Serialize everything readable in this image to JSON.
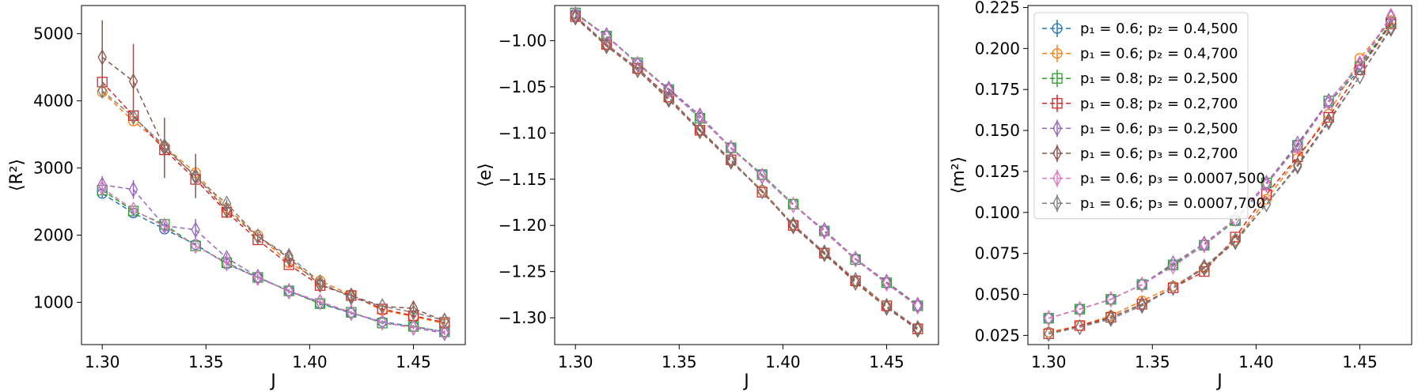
{
  "chart_data": [
    {
      "type": "line",
      "xlabel": "J",
      "ylabel": "⟨R²⟩",
      "xlim": [
        1.29,
        1.475
      ],
      "ylim": [
        370,
        5420
      ],
      "xticks": [
        "1.30",
        "1.35",
        "1.40",
        "1.45"
      ],
      "yticks": [
        "1000",
        "2000",
        "3000",
        "4000",
        "5000"
      ],
      "grid": false,
      "x": [
        1.3,
        1.315,
        1.33,
        1.345,
        1.36,
        1.375,
        1.39,
        1.405,
        1.42,
        1.435,
        1.45,
        1.465
      ],
      "series": [
        {
          "name": "p₁ = 0.6; p₂ = 0.4,500",
          "color": "#1f77b4",
          "marker": "circle",
          "values": [
            2620,
            2330,
            2090,
            1860,
            1570,
            1370,
            1170,
            980,
            840,
            710,
            640,
            560
          ],
          "errors": [
            60,
            40,
            30,
            30,
            30,
            25,
            25,
            25,
            20,
            20,
            20,
            20
          ]
        },
        {
          "name": "p₁ = 0.6; p₂ = 0.4,700",
          "color": "#ff7f0e",
          "marker": "circle",
          "values": [
            4130,
            3700,
            3320,
            2930,
            2400,
            2000,
            1590,
            1320,
            1110,
            880,
            790,
            680
          ],
          "errors": [
            80,
            60,
            60,
            60,
            50,
            40,
            40,
            30,
            30,
            30,
            30,
            30
          ]
        },
        {
          "name": "p₁ = 0.8; p₂ = 0.2,500",
          "color": "#2ca02c",
          "marker": "square",
          "values": [
            2670,
            2360,
            2160,
            1840,
            1590,
            1370,
            1170,
            980,
            850,
            690,
            640,
            560
          ],
          "errors": [
            60,
            40,
            30,
            30,
            30,
            25,
            25,
            25,
            20,
            20,
            20,
            20
          ]
        },
        {
          "name": "p₁ = 0.8; p₂ = 0.2,700",
          "color": "#d62728",
          "marker": "square",
          "values": [
            4280,
            3780,
            3270,
            2830,
            2340,
            1930,
            1560,
            1250,
            1100,
            900,
            800,
            700
          ],
          "errors": [
            80,
            60,
            60,
            60,
            50,
            40,
            40,
            30,
            30,
            30,
            30,
            30
          ]
        },
        {
          "name": "p₁ = 0.6; p₃ = 0.2,500",
          "color": "#9467bd",
          "marker": "diamond",
          "values": [
            2750,
            2680,
            2140,
            2080,
            1660,
            1380,
            1160,
            1000,
            840,
            700,
            620,
            540
          ],
          "errors": [
            130,
            140,
            60,
            160,
            70,
            40,
            30,
            30,
            25,
            25,
            25,
            25
          ]
        },
        {
          "name": "p₁ = 0.6; p₃ = 0.2,700",
          "color": "#8c564b",
          "marker": "diamond",
          "values": [
            4650,
            4290,
            3300,
            2880,
            2370,
            1980,
            1660,
            1260,
            1100,
            940,
            910,
            720
          ],
          "errors": [
            550,
            560,
            450,
            330,
            100,
            60,
            50,
            40,
            40,
            40,
            100,
            40
          ]
        },
        {
          "name": "p₁ = 0.6; p₃ = 0.0007,500",
          "color": "#e377c2",
          "marker": "diamond",
          "values": [
            2700,
            2380,
            2130,
            1840,
            1580,
            1360,
            1170,
            1010,
            850,
            700,
            630,
            560
          ],
          "errors": [
            60,
            40,
            30,
            30,
            30,
            25,
            25,
            25,
            20,
            20,
            20,
            20
          ]
        },
        {
          "name": "p₁ = 0.6; p₃ = 0.0007,700",
          "color": "#7f7f7f",
          "marker": "diamond",
          "values": [
            4150,
            3760,
            3330,
            2860,
            2470,
            1980,
            1690,
            1300,
            1070,
            940,
            850,
            730
          ],
          "errors": [
            90,
            70,
            70,
            60,
            60,
            50,
            40,
            40,
            30,
            30,
            30,
            30
          ]
        }
      ]
    },
    {
      "type": "line",
      "xlabel": "J",
      "ylabel": "⟨e⟩",
      "xlim": [
        1.29,
        1.475
      ],
      "ylim": [
        -1.329,
        -0.962
      ],
      "xticks": [
        "1.30",
        "1.35",
        "1.40",
        "1.45"
      ],
      "yticks": [
        "−1.00",
        "−1.05",
        "−1.10",
        "−1.15",
        "−1.20",
        "−1.25",
        "−1.30"
      ],
      "grid": false,
      "x": [
        1.3,
        1.315,
        1.33,
        1.345,
        1.36,
        1.375,
        1.39,
        1.405,
        1.42,
        1.435,
        1.45,
        1.465
      ],
      "series": [
        {
          "name": "p₁ = 0.6; p₂ = 0.4,500",
          "color": "#1f77b4",
          "marker": "circle",
          "values": [
            -0.971,
            -0.995,
            -1.025,
            -1.053,
            -1.083,
            -1.116,
            -1.145,
            -1.177,
            -1.206,
            -1.236,
            -1.262,
            -1.287
          ]
        },
        {
          "name": "p₁ = 0.6; p₂ = 0.4,700",
          "color": "#ff7f0e",
          "marker": "circle",
          "values": [
            -0.974,
            -1.005,
            -1.031,
            -1.063,
            -1.097,
            -1.13,
            -1.162,
            -1.199,
            -1.23,
            -1.261,
            -1.288,
            -1.311
          ]
        },
        {
          "name": "p₁ = 0.8; p₂ = 0.2,500",
          "color": "#2ca02c",
          "marker": "square",
          "values": [
            -0.97,
            -0.995,
            -1.024,
            -1.053,
            -1.084,
            -1.116,
            -1.145,
            -1.177,
            -1.206,
            -1.237,
            -1.262,
            -1.287
          ]
        },
        {
          "name": "p₁ = 0.8; p₂ = 0.2,700",
          "color": "#d62728",
          "marker": "square",
          "values": [
            -0.974,
            -1.004,
            -1.03,
            -1.061,
            -1.097,
            -1.129,
            -1.164,
            -1.2,
            -1.23,
            -1.26,
            -1.287,
            -1.312
          ]
        },
        {
          "name": "p₁ = 0.6; p₃ = 0.2,500",
          "color": "#9467bd",
          "marker": "diamond",
          "values": [
            -0.972,
            -0.994,
            -1.026,
            -1.052,
            -1.081,
            -1.116,
            -1.147,
            -1.178,
            -1.205,
            -1.236,
            -1.261,
            -1.286
          ]
        },
        {
          "name": "p₁ = 0.6; p₃ = 0.2,700",
          "color": "#8c564b",
          "marker": "diamond",
          "values": [
            -0.975,
            -1.006,
            -1.032,
            -1.064,
            -1.098,
            -1.131,
            -1.163,
            -1.201,
            -1.231,
            -1.262,
            -1.289,
            -1.313
          ]
        },
        {
          "name": "p₁ = 0.6; p₃ = 0.0007,500",
          "color": "#e377c2",
          "marker": "diamond",
          "values": [
            -0.971,
            -0.996,
            -1.025,
            -1.054,
            -1.083,
            -1.117,
            -1.146,
            -1.178,
            -1.207,
            -1.237,
            -1.263,
            -1.288
          ]
        },
        {
          "name": "p₁ = 0.6; p₃ = 0.0007,700",
          "color": "#7f7f7f",
          "marker": "diamond",
          "values": [
            -0.973,
            -1.004,
            -1.031,
            -1.062,
            -1.096,
            -1.129,
            -1.163,
            -1.199,
            -1.229,
            -1.259,
            -1.287,
            -1.311
          ]
        }
      ]
    },
    {
      "type": "line",
      "xlabel": "J",
      "ylabel": "⟨m²⟩",
      "xlim": [
        1.29,
        1.475
      ],
      "ylim": [
        0.0194,
        0.2262
      ],
      "xticks": [
        "1.30",
        "1.35",
        "1.40",
        "1.45"
      ],
      "yticks": [
        "0.025",
        "0.050",
        "0.075",
        "0.100",
        "0.125",
        "0.150",
        "0.175",
        "0.200",
        "0.225"
      ],
      "grid": false,
      "legend": "top-left",
      "x": [
        1.3,
        1.315,
        1.33,
        1.345,
        1.36,
        1.375,
        1.39,
        1.405,
        1.42,
        1.435,
        1.45,
        1.465
      ],
      "series": [
        {
          "name": "p₁ = 0.6; p₂ = 0.4,500",
          "color": "#1f77b4",
          "marker": "circle",
          "values": [
            0.0355,
            0.041,
            0.047,
            0.056,
            0.068,
            0.08,
            0.095,
            0.117,
            0.141,
            0.167,
            0.187,
            0.216
          ]
        },
        {
          "name": "p₁ = 0.6; p₂ = 0.4,700",
          "color": "#ff7f0e",
          "marker": "circle",
          "values": [
            0.027,
            0.031,
            0.037,
            0.046,
            0.055,
            0.066,
            0.083,
            0.108,
            0.133,
            0.16,
            0.194,
            0.217
          ]
        },
        {
          "name": "p₁ = 0.8; p₂ = 0.2,500",
          "color": "#2ca02c",
          "marker": "square",
          "values": [
            0.0355,
            0.041,
            0.047,
            0.056,
            0.068,
            0.08,
            0.095,
            0.118,
            0.141,
            0.168,
            0.189,
            0.216
          ]
        },
        {
          "name": "p₁ = 0.8; p₂ = 0.2,700",
          "color": "#d62728",
          "marker": "square",
          "values": [
            0.026,
            0.031,
            0.036,
            0.044,
            0.054,
            0.064,
            0.085,
            0.111,
            0.134,
            0.158,
            0.187,
            0.215
          ]
        },
        {
          "name": "p₁ = 0.6; p₃ = 0.2,500",
          "color": "#9467bd",
          "marker": "diamond",
          "values": [
            0.0355,
            0.041,
            0.047,
            0.056,
            0.069,
            0.081,
            0.096,
            0.118,
            0.142,
            0.168,
            0.19,
            0.219
          ]
        },
        {
          "name": "p₁ = 0.6; p₃ = 0.2,700",
          "color": "#8c564b",
          "marker": "diamond",
          "values": [
            0.026,
            0.03,
            0.036,
            0.044,
            0.054,
            0.066,
            0.082,
            0.105,
            0.129,
            0.156,
            0.183,
            0.212
          ]
        },
        {
          "name": "p₁ = 0.6; p₃ = 0.0007,500",
          "color": "#e377c2",
          "marker": "diamond",
          "values": [
            0.0355,
            0.041,
            0.047,
            0.056,
            0.067,
            0.08,
            0.096,
            0.117,
            0.14,
            0.167,
            0.191,
            0.22
          ]
        },
        {
          "name": "p₁ = 0.6; p₃ = 0.0007,700",
          "color": "#7f7f7f",
          "marker": "diamond",
          "values": [
            0.026,
            0.03,
            0.035,
            0.043,
            0.054,
            0.067,
            0.083,
            0.105,
            0.128,
            0.155,
            0.183,
            0.213
          ]
        }
      ]
    }
  ]
}
